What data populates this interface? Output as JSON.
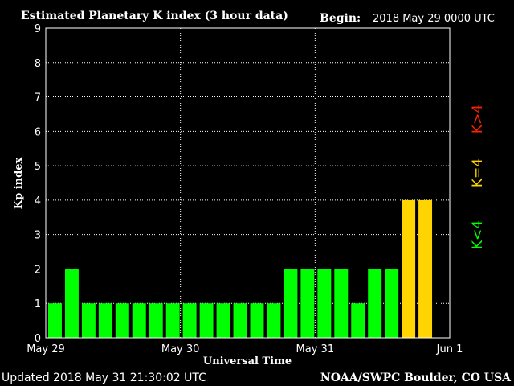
{
  "chart_data": {
    "type": "bar",
    "title": "Estimated Planetary K index (3 hour data)",
    "begin_label": "Begin:",
    "begin_value": "2018 May 29 0000 UTC",
    "xlabel": "Universal Time",
    "ylabel": "Kp index",
    "ylim": [
      0,
      9
    ],
    "yticks": [
      "0",
      "1",
      "2",
      "3",
      "4",
      "5",
      "6",
      "7",
      "8",
      "9"
    ],
    "xticks": [
      "May 29",
      "May 30",
      "May 31",
      "Jun 1"
    ],
    "bar_interval_hours": 3,
    "values": [
      1,
      2,
      1,
      1,
      1,
      1,
      1,
      1,
      1,
      1,
      1,
      1,
      1,
      1,
      2,
      2,
      2,
      2,
      1,
      2,
      2,
      4,
      4
    ],
    "grid": true,
    "colors": {
      "low": "#00ff00",
      "mid": "#ffd400",
      "high": "#ff2200"
    },
    "legend": {
      "position": "right",
      "low_label": "K<4",
      "mid_label": "K=4",
      "high_label": "K>4"
    }
  },
  "footer": {
    "updated": "Updated 2018 May 31 21:30:02 UTC",
    "source": "NOAA/SWPC Boulder, CO USA"
  }
}
